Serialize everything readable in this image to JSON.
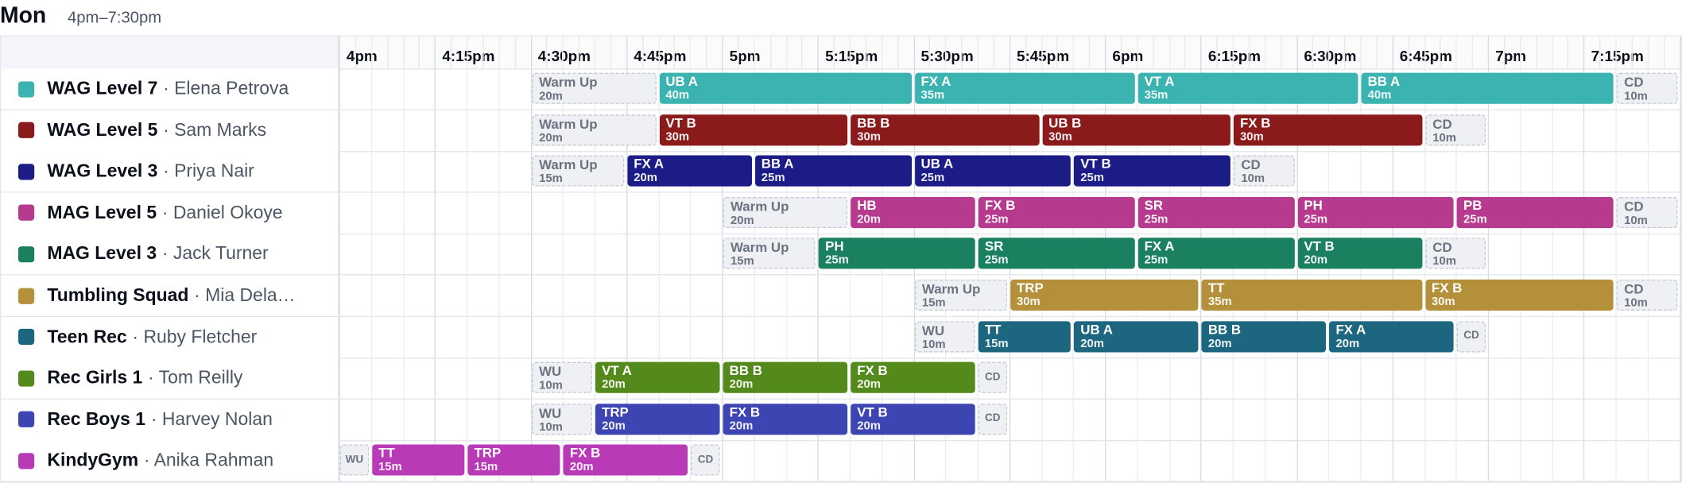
{
  "day": {
    "name": "Mon",
    "range": "4pm–7:30pm"
  },
  "timeline": {
    "labels": [
      "4pm",
      "4:15pm",
      "4:30pm",
      "4:45pm",
      "5pm",
      "5:15pm",
      "5:30pm",
      "5:45pm",
      "6pm",
      "6:15pm",
      "6:30pm",
      "6:45pm",
      "7pm",
      "7:15pm"
    ]
  },
  "groups": [
    {
      "name": "WAG Level 7",
      "coach": "· Elena Petrova",
      "color": "#3bb3b0",
      "blocks": [
        {
          "label": "Warm Up",
          "dur": "20m",
          "start": 30,
          "mins": 20,
          "kind": "ghost"
        },
        {
          "label": "UB A",
          "dur": "40m",
          "start": 50,
          "mins": 40
        },
        {
          "label": "FX A",
          "dur": "35m",
          "start": 90,
          "mins": 35
        },
        {
          "label": "VT A",
          "dur": "35m",
          "start": 125,
          "mins": 35
        },
        {
          "label": "BB A",
          "dur": "40m",
          "start": 160,
          "mins": 40
        },
        {
          "label": "CD",
          "dur": "10m",
          "start": 200,
          "mins": 10,
          "kind": "ghost"
        }
      ]
    },
    {
      "name": "WAG Level 5",
      "coach": "· Sam Marks",
      "color": "#8b1a1a",
      "blocks": [
        {
          "label": "Warm Up",
          "dur": "20m",
          "start": 30,
          "mins": 20,
          "kind": "ghost"
        },
        {
          "label": "VT B",
          "dur": "30m",
          "start": 50,
          "mins": 30
        },
        {
          "label": "BB B",
          "dur": "30m",
          "start": 80,
          "mins": 30
        },
        {
          "label": "UB B",
          "dur": "30m",
          "start": 110,
          "mins": 30
        },
        {
          "label": "FX B",
          "dur": "30m",
          "start": 140,
          "mins": 30
        },
        {
          "label": "CD",
          "dur": "10m",
          "start": 170,
          "mins": 10,
          "kind": "ghost"
        }
      ]
    },
    {
      "name": "WAG Level 3",
      "coach": "· Priya Nair",
      "color": "#1c1c86",
      "blocks": [
        {
          "label": "Warm Up",
          "dur": "15m",
          "start": 30,
          "mins": 15,
          "kind": "ghost"
        },
        {
          "label": "FX A",
          "dur": "20m",
          "start": 45,
          "mins": 20
        },
        {
          "label": "BB A",
          "dur": "25m",
          "start": 65,
          "mins": 25
        },
        {
          "label": "UB A",
          "dur": "25m",
          "start": 90,
          "mins": 25
        },
        {
          "label": "VT B",
          "dur": "25m",
          "start": 115,
          "mins": 25
        },
        {
          "label": "CD",
          "dur": "10m",
          "start": 140,
          "mins": 10,
          "kind": "ghost"
        }
      ]
    },
    {
      "name": "MAG Level 5",
      "coach": "· Daniel Okoye",
      "color": "#b63a8d",
      "blocks": [
        {
          "label": "Warm Up",
          "dur": "20m",
          "start": 60,
          "mins": 20,
          "kind": "ghost"
        },
        {
          "label": "HB",
          "dur": "20m",
          "start": 80,
          "mins": 20
        },
        {
          "label": "FX B",
          "dur": "25m",
          "start": 100,
          "mins": 25
        },
        {
          "label": "SR",
          "dur": "25m",
          "start": 125,
          "mins": 25
        },
        {
          "label": "PH",
          "dur": "25m",
          "start": 150,
          "mins": 25
        },
        {
          "label": "PB",
          "dur": "25m",
          "start": 175,
          "mins": 25
        },
        {
          "label": "CD",
          "dur": "10m",
          "start": 200,
          "mins": 10,
          "kind": "ghost"
        }
      ]
    },
    {
      "name": "MAG Level 3",
      "coach": "· Jack Turner",
      "color": "#1a8060",
      "blocks": [
        {
          "label": "Warm Up",
          "dur": "15m",
          "start": 60,
          "mins": 15,
          "kind": "ghost"
        },
        {
          "label": "PH",
          "dur": "25m",
          "start": 75,
          "mins": 25
        },
        {
          "label": "SR",
          "dur": "25m",
          "start": 100,
          "mins": 25
        },
        {
          "label": "FX A",
          "dur": "25m",
          "start": 125,
          "mins": 25
        },
        {
          "label": "VT B",
          "dur": "20m",
          "start": 150,
          "mins": 20
        },
        {
          "label": "CD",
          "dur": "10m",
          "start": 170,
          "mins": 10,
          "kind": "ghost"
        }
      ]
    },
    {
      "name": "Tumbling Squad",
      "coach": "· Mia Dela…",
      "color": "#b5903a",
      "blocks": [
        {
          "label": "Warm Up",
          "dur": "15m",
          "start": 90,
          "mins": 15,
          "kind": "ghost"
        },
        {
          "label": "TRP",
          "dur": "30m",
          "start": 105,
          "mins": 30
        },
        {
          "label": "TT",
          "dur": "35m",
          "start": 135,
          "mins": 35
        },
        {
          "label": "FX B",
          "dur": "30m",
          "start": 170,
          "mins": 30
        },
        {
          "label": "CD",
          "dur": "10m",
          "start": 200,
          "mins": 10,
          "kind": "ghost"
        }
      ]
    },
    {
      "name": "Teen Rec",
      "coach": "· Ruby Fletcher",
      "color": "#1c6680",
      "blocks": [
        {
          "label": "WU",
          "dur": "10m",
          "start": 90,
          "mins": 10,
          "kind": "ghost"
        },
        {
          "label": "TT",
          "dur": "15m",
          "start": 100,
          "mins": 15
        },
        {
          "label": "UB A",
          "dur": "20m",
          "start": 115,
          "mins": 20
        },
        {
          "label": "BB B",
          "dur": "20m",
          "start": 135,
          "mins": 20
        },
        {
          "label": "FX A",
          "dur": "20m",
          "start": 155,
          "mins": 20
        },
        {
          "label": "CD",
          "dur": "",
          "start": 175,
          "mins": 5,
          "kind": "tiny"
        }
      ]
    },
    {
      "name": "Rec Girls 1",
      "coach": "· Tom Reilly",
      "color": "#548a1c",
      "blocks": [
        {
          "label": "WU",
          "dur": "10m",
          "start": 30,
          "mins": 10,
          "kind": "ghost"
        },
        {
          "label": "VT A",
          "dur": "20m",
          "start": 40,
          "mins": 20
        },
        {
          "label": "BB B",
          "dur": "20m",
          "start": 60,
          "mins": 20
        },
        {
          "label": "FX B",
          "dur": "20m",
          "start": 80,
          "mins": 20
        },
        {
          "label": "CD",
          "dur": "",
          "start": 100,
          "mins": 5,
          "kind": "tiny"
        }
      ]
    },
    {
      "name": "Rec Boys 1",
      "coach": "· Harvey Nolan",
      "color": "#3d45b3",
      "blocks": [
        {
          "label": "WU",
          "dur": "10m",
          "start": 30,
          "mins": 10,
          "kind": "ghost"
        },
        {
          "label": "TRP",
          "dur": "20m",
          "start": 40,
          "mins": 20
        },
        {
          "label": "FX B",
          "dur": "20m",
          "start": 60,
          "mins": 20
        },
        {
          "label": "VT B",
          "dur": "20m",
          "start": 80,
          "mins": 20
        },
        {
          "label": "CD",
          "dur": "",
          "start": 100,
          "mins": 5,
          "kind": "tiny"
        }
      ]
    },
    {
      "name": "KindyGym",
      "coach": "· Anika Rahman",
      "color": "#b83ab6",
      "blocks": [
        {
          "label": "WU",
          "dur": "",
          "start": 0,
          "mins": 5,
          "kind": "tiny"
        },
        {
          "label": "TT",
          "dur": "15m",
          "start": 5,
          "mins": 15
        },
        {
          "label": "TRP",
          "dur": "15m",
          "start": 20,
          "mins": 15
        },
        {
          "label": "FX B",
          "dur": "20m",
          "start": 35,
          "mins": 20
        },
        {
          "label": "CD",
          "dur": "",
          "start": 55,
          "mins": 5,
          "kind": "tiny"
        }
      ]
    }
  ]
}
